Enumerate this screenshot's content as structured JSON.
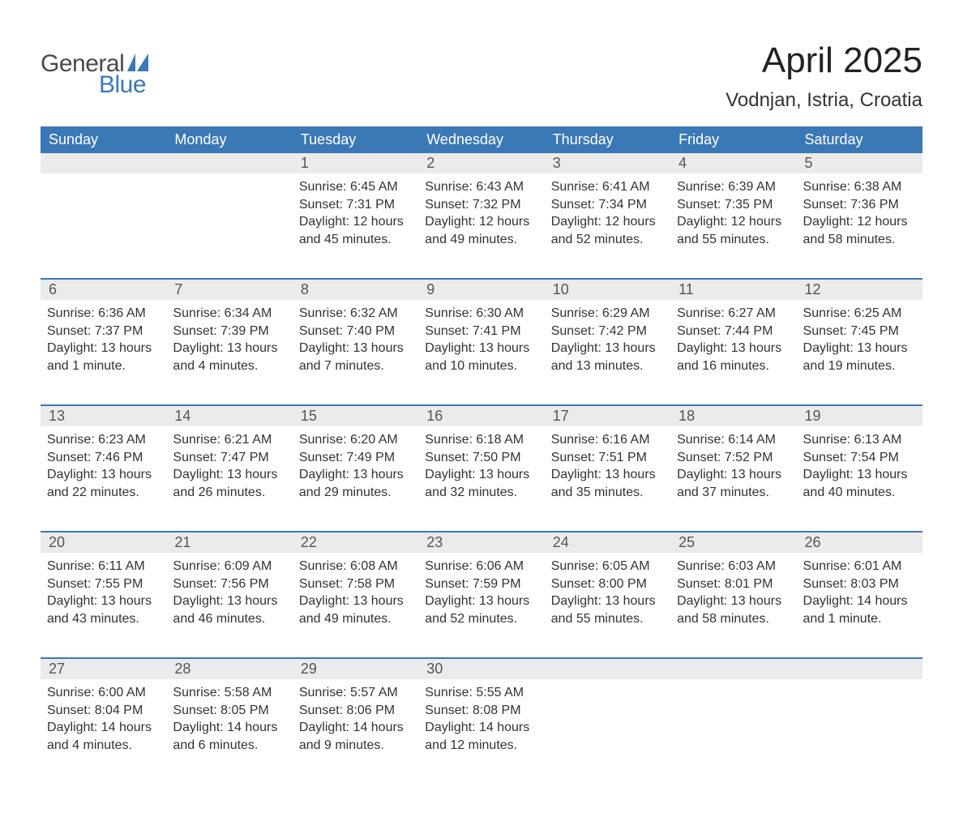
{
  "brand": {
    "name_part1": "General",
    "name_part2": "Blue",
    "text_color_1": "#4a4a4a",
    "text_color_2": "#3b78b6",
    "flag_color": "#3b78b6"
  },
  "title": "April 2025",
  "location": "Vodnjan, Istria, Croatia",
  "colors": {
    "header_bg": "#3b78b6",
    "header_text": "#ffffff",
    "daynum_bg": "#ebebeb",
    "daynum_text": "#555555",
    "body_text": "#333333",
    "separator": "#3b78b6",
    "page_bg": "#ffffff"
  },
  "typography": {
    "title_fontsize": 44,
    "location_fontsize": 24,
    "header_fontsize": 18,
    "daynum_fontsize": 18,
    "content_fontsize": 16
  },
  "weekdays": [
    "Sunday",
    "Monday",
    "Tuesday",
    "Wednesday",
    "Thursday",
    "Friday",
    "Saturday"
  ],
  "weeks": [
    [
      {
        "n": "",
        "sunrise": "",
        "sunset": "",
        "daylight": ""
      },
      {
        "n": "",
        "sunrise": "",
        "sunset": "",
        "daylight": ""
      },
      {
        "n": "1",
        "sunrise": "Sunrise: 6:45 AM",
        "sunset": "Sunset: 7:31 PM",
        "daylight": "Daylight: 12 hours and 45 minutes."
      },
      {
        "n": "2",
        "sunrise": "Sunrise: 6:43 AM",
        "sunset": "Sunset: 7:32 PM",
        "daylight": "Daylight: 12 hours and 49 minutes."
      },
      {
        "n": "3",
        "sunrise": "Sunrise: 6:41 AM",
        "sunset": "Sunset: 7:34 PM",
        "daylight": "Daylight: 12 hours and 52 minutes."
      },
      {
        "n": "4",
        "sunrise": "Sunrise: 6:39 AM",
        "sunset": "Sunset: 7:35 PM",
        "daylight": "Daylight: 12 hours and 55 minutes."
      },
      {
        "n": "5",
        "sunrise": "Sunrise: 6:38 AM",
        "sunset": "Sunset: 7:36 PM",
        "daylight": "Daylight: 12 hours and 58 minutes."
      }
    ],
    [
      {
        "n": "6",
        "sunrise": "Sunrise: 6:36 AM",
        "sunset": "Sunset: 7:37 PM",
        "daylight": "Daylight: 13 hours and 1 minute."
      },
      {
        "n": "7",
        "sunrise": "Sunrise: 6:34 AM",
        "sunset": "Sunset: 7:39 PM",
        "daylight": "Daylight: 13 hours and 4 minutes."
      },
      {
        "n": "8",
        "sunrise": "Sunrise: 6:32 AM",
        "sunset": "Sunset: 7:40 PM",
        "daylight": "Daylight: 13 hours and 7 minutes."
      },
      {
        "n": "9",
        "sunrise": "Sunrise: 6:30 AM",
        "sunset": "Sunset: 7:41 PM",
        "daylight": "Daylight: 13 hours and 10 minutes."
      },
      {
        "n": "10",
        "sunrise": "Sunrise: 6:29 AM",
        "sunset": "Sunset: 7:42 PM",
        "daylight": "Daylight: 13 hours and 13 minutes."
      },
      {
        "n": "11",
        "sunrise": "Sunrise: 6:27 AM",
        "sunset": "Sunset: 7:44 PM",
        "daylight": "Daylight: 13 hours and 16 minutes."
      },
      {
        "n": "12",
        "sunrise": "Sunrise: 6:25 AM",
        "sunset": "Sunset: 7:45 PM",
        "daylight": "Daylight: 13 hours and 19 minutes."
      }
    ],
    [
      {
        "n": "13",
        "sunrise": "Sunrise: 6:23 AM",
        "sunset": "Sunset: 7:46 PM",
        "daylight": "Daylight: 13 hours and 22 minutes."
      },
      {
        "n": "14",
        "sunrise": "Sunrise: 6:21 AM",
        "sunset": "Sunset: 7:47 PM",
        "daylight": "Daylight: 13 hours and 26 minutes."
      },
      {
        "n": "15",
        "sunrise": "Sunrise: 6:20 AM",
        "sunset": "Sunset: 7:49 PM",
        "daylight": "Daylight: 13 hours and 29 minutes."
      },
      {
        "n": "16",
        "sunrise": "Sunrise: 6:18 AM",
        "sunset": "Sunset: 7:50 PM",
        "daylight": "Daylight: 13 hours and 32 minutes."
      },
      {
        "n": "17",
        "sunrise": "Sunrise: 6:16 AM",
        "sunset": "Sunset: 7:51 PM",
        "daylight": "Daylight: 13 hours and 35 minutes."
      },
      {
        "n": "18",
        "sunrise": "Sunrise: 6:14 AM",
        "sunset": "Sunset: 7:52 PM",
        "daylight": "Daylight: 13 hours and 37 minutes."
      },
      {
        "n": "19",
        "sunrise": "Sunrise: 6:13 AM",
        "sunset": "Sunset: 7:54 PM",
        "daylight": "Daylight: 13 hours and 40 minutes."
      }
    ],
    [
      {
        "n": "20",
        "sunrise": "Sunrise: 6:11 AM",
        "sunset": "Sunset: 7:55 PM",
        "daylight": "Daylight: 13 hours and 43 minutes."
      },
      {
        "n": "21",
        "sunrise": "Sunrise: 6:09 AM",
        "sunset": "Sunset: 7:56 PM",
        "daylight": "Daylight: 13 hours and 46 minutes."
      },
      {
        "n": "22",
        "sunrise": "Sunrise: 6:08 AM",
        "sunset": "Sunset: 7:58 PM",
        "daylight": "Daylight: 13 hours and 49 minutes."
      },
      {
        "n": "23",
        "sunrise": "Sunrise: 6:06 AM",
        "sunset": "Sunset: 7:59 PM",
        "daylight": "Daylight: 13 hours and 52 minutes."
      },
      {
        "n": "24",
        "sunrise": "Sunrise: 6:05 AM",
        "sunset": "Sunset: 8:00 PM",
        "daylight": "Daylight: 13 hours and 55 minutes."
      },
      {
        "n": "25",
        "sunrise": "Sunrise: 6:03 AM",
        "sunset": "Sunset: 8:01 PM",
        "daylight": "Daylight: 13 hours and 58 minutes."
      },
      {
        "n": "26",
        "sunrise": "Sunrise: 6:01 AM",
        "sunset": "Sunset: 8:03 PM",
        "daylight": "Daylight: 14 hours and 1 minute."
      }
    ],
    [
      {
        "n": "27",
        "sunrise": "Sunrise: 6:00 AM",
        "sunset": "Sunset: 8:04 PM",
        "daylight": "Daylight: 14 hours and 4 minutes."
      },
      {
        "n": "28",
        "sunrise": "Sunrise: 5:58 AM",
        "sunset": "Sunset: 8:05 PM",
        "daylight": "Daylight: 14 hours and 6 minutes."
      },
      {
        "n": "29",
        "sunrise": "Sunrise: 5:57 AM",
        "sunset": "Sunset: 8:06 PM",
        "daylight": "Daylight: 14 hours and 9 minutes."
      },
      {
        "n": "30",
        "sunrise": "Sunrise: 5:55 AM",
        "sunset": "Sunset: 8:08 PM",
        "daylight": "Daylight: 14 hours and 12 minutes."
      },
      {
        "n": "",
        "sunrise": "",
        "sunset": "",
        "daylight": ""
      },
      {
        "n": "",
        "sunrise": "",
        "sunset": "",
        "daylight": ""
      },
      {
        "n": "",
        "sunrise": "",
        "sunset": "",
        "daylight": ""
      }
    ]
  ]
}
